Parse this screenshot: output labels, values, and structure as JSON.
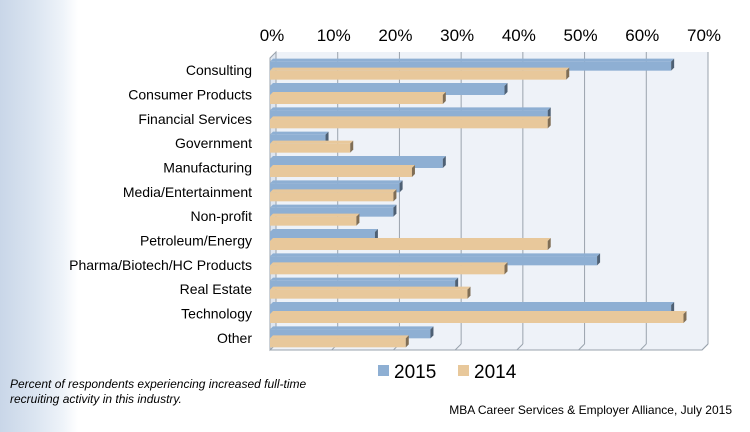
{
  "chart_data": {
    "type": "bar",
    "orientation": "horizontal",
    "style": "3d-clustered",
    "categories": [
      "Consulting",
      "Consumer Products",
      "Financial Services",
      "Government",
      "Manufacturing",
      "Media/Entertainment",
      "Non-profit",
      "Petroleum/Energy",
      "Pharma/Biotech/HC Products",
      "Real Estate",
      "Technology",
      "Other"
    ],
    "series": [
      {
        "name": "2015",
        "color": "#8eafd3",
        "values": [
          65,
          38,
          45,
          9,
          28,
          21,
          20,
          17,
          53,
          30,
          65,
          26
        ]
      },
      {
        "name": "2014",
        "color": "#e8c89b",
        "values": [
          48,
          28,
          45,
          13,
          23,
          20,
          14,
          45,
          38,
          32,
          67,
          22
        ]
      }
    ],
    "xlim": [
      0,
      70
    ],
    "xticks": [
      0,
      10,
      20,
      30,
      40,
      50,
      60,
      70
    ],
    "tick_suffix": "%",
    "xaxis_position": "top",
    "legend_position": "bottom-center",
    "grid": true
  },
  "tick_labels": [
    "0%",
    "10%",
    "20%",
    "30%",
    "40%",
    "50%",
    "60%",
    "70%"
  ],
  "legend": {
    "label_2015": "2015",
    "label_2014": "2014"
  },
  "footnote": "Percent of respondents experiencing increased full-time recruiting activity in this industry.",
  "source": "MBA Career Services & Employer Alliance, July 2015"
}
